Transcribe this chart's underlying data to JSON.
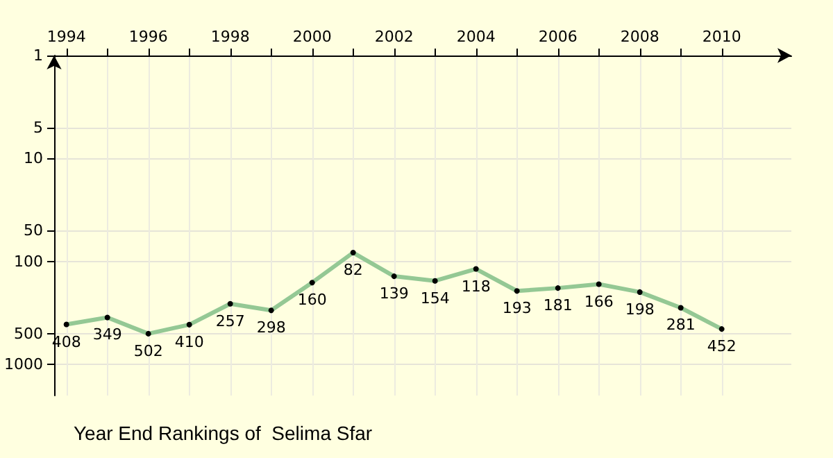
{
  "chart_data": {
    "type": "line",
    "title": "Year End Rankings of  Selima Sfar",
    "x": [
      1994,
      1995,
      1996,
      1997,
      1998,
      1999,
      2000,
      2001,
      2002,
      2003,
      2004,
      2005,
      2006,
      2007,
      2008,
      2009,
      2010
    ],
    "series": [
      {
        "color": "#94c894",
        "values": [
          408,
          349,
          502,
          410,
          257,
          298,
          160,
          82,
          139,
          154,
          118,
          193,
          181,
          166,
          198,
          281,
          452
        ]
      }
    ],
    "xlim": [
      1993.7,
      2011.7
    ],
    "xticks": [
      1994,
      {
        "value": 1995,
        "label": null
      },
      1996,
      {
        "value": 1997,
        "label": null
      },
      1998,
      {
        "value": 1999,
        "label": null
      },
      2000,
      {
        "value": 2001,
        "label": null
      },
      2002,
      {
        "value": 2003,
        "label": null
      },
      2004,
      {
        "value": 2005,
        "label": null
      },
      2006,
      {
        "value": 2007,
        "label": null
      },
      2008,
      {
        "value": 2009,
        "label": null
      },
      2010
    ],
    "ylim": [
      2000,
      1
    ],
    "yticks": [
      1,
      5,
      10,
      50,
      100,
      500,
      1000
    ],
    "log": "y",
    "grid": true,
    "marker": "circle",
    "line_style": "solid",
    "data_labels": true
  }
}
